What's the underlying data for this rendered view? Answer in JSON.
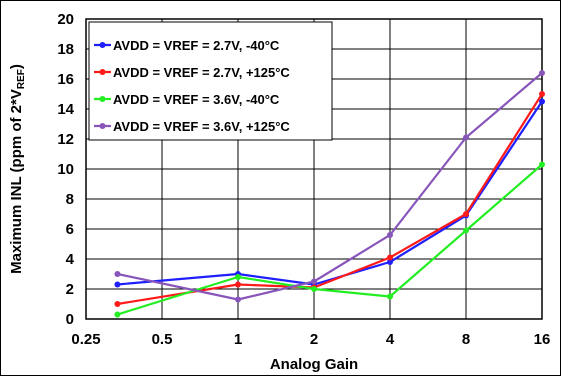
{
  "chart_data": {
    "type": "line",
    "xlabel": "Analog Gain",
    "ylabel_main": "Maximum INL (ppm of 2*V",
    "ylabel_sub": "REF",
    "ylabel_end": ")",
    "x_scale": "log2",
    "xlim": [
      0.25,
      16
    ],
    "ylim": [
      0,
      20
    ],
    "y_ticks": [
      0,
      2,
      4,
      6,
      8,
      10,
      12,
      14,
      16,
      18,
      20
    ],
    "x_ticks": [
      0.25,
      0.5,
      1,
      2,
      4,
      8,
      16
    ],
    "x_tick_labels": [
      "0.25",
      "0.5",
      "1",
      "2",
      "4",
      "8",
      "16"
    ],
    "grid": true,
    "legend_position": "top-left",
    "series": [
      {
        "name": "AVDD = VREF = 2.7V, -40°C",
        "color": "#1f1fff",
        "x": [
          0.333,
          1,
          2,
          4,
          8,
          16
        ],
        "y": [
          2.3,
          3.0,
          2.3,
          3.8,
          6.9,
          14.5
        ]
      },
      {
        "name": "AVDD = VREF = 2.7V, +125°C",
        "color": "#ff1a1a",
        "x": [
          0.333,
          1,
          2,
          4,
          8,
          16
        ],
        "y": [
          1.0,
          2.3,
          2.1,
          4.1,
          7.0,
          15.0
        ]
      },
      {
        "name": "AVDD = VREF = 3.6V, -40°C",
        "color": "#22ee22",
        "x": [
          0.333,
          1,
          2,
          4,
          8,
          16
        ],
        "y": [
          0.3,
          2.8,
          2.0,
          1.5,
          5.9,
          10.3
        ]
      },
      {
        "name": "AVDD = VREF = 3.6V, +125°C",
        "color": "#8855bb",
        "x": [
          0.333,
          1,
          2,
          4,
          8,
          16
        ],
        "y": [
          3.0,
          1.3,
          2.5,
          5.6,
          12.1,
          16.4
        ]
      }
    ]
  }
}
